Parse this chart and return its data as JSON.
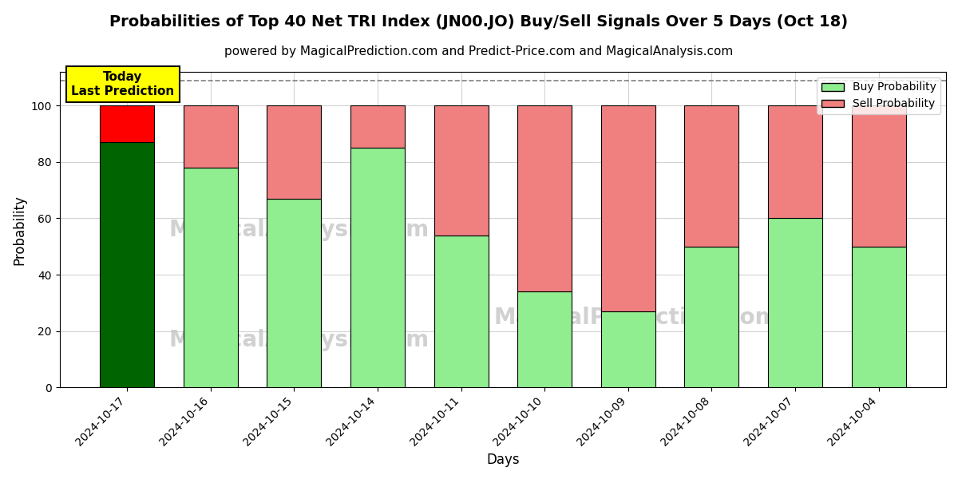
{
  "title": "Probabilities of Top 40 Net TRI Index (JN00.JO) Buy/Sell Signals Over 5 Days (Oct 18)",
  "subtitle": "powered by MagicalPrediction.com and Predict-Price.com and MagicalAnalysis.com",
  "xlabel": "Days",
  "ylabel": "Probability",
  "categories": [
    "2024-10-17",
    "2024-10-16",
    "2024-10-15",
    "2024-10-14",
    "2024-10-11",
    "2024-10-10",
    "2024-10-09",
    "2024-10-08",
    "2024-10-07",
    "2024-10-04"
  ],
  "buy_values": [
    87,
    78,
    67,
    85,
    54,
    34,
    27,
    50,
    60,
    50
  ],
  "sell_values": [
    13,
    22,
    33,
    15,
    46,
    66,
    73,
    50,
    40,
    50
  ],
  "buy_color_normal": "#90EE90",
  "sell_color_normal": "#F08080",
  "today_buy_color": "#006400",
  "today_sell_color": "#FF0000",
  "today_index": 0,
  "ylim": [
    0,
    112
  ],
  "yticks": [
    0,
    20,
    40,
    60,
    80,
    100
  ],
  "dashed_line_y": 109,
  "annotation_text": "Today\nLast Prediction",
  "annotation_bbox_color": "#FFFF00",
  "legend_buy_label": "Buy Probability",
  "legend_sell_label": "Sell Probability",
  "watermark_color": "#BEBEBE",
  "background_color": "#FFFFFF",
  "bar_width": 0.65,
  "title_fontsize": 14,
  "subtitle_fontsize": 11,
  "axis_label_fontsize": 12,
  "tick_fontsize": 10
}
